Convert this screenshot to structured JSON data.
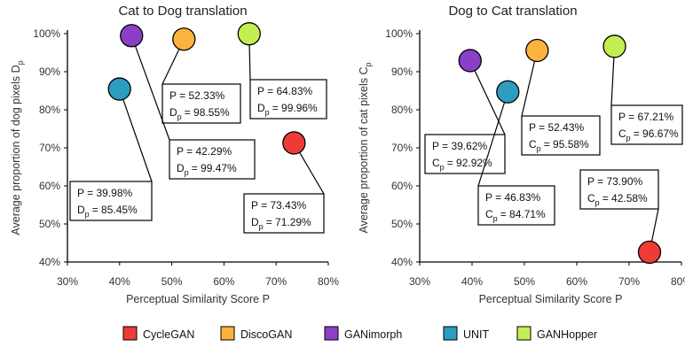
{
  "chart_data": [
    {
      "type": "scatter",
      "title": "Cat to Dog translation",
      "xlabel": "Perceptual Similarity Score P",
      "ylabel": "Average proportion of dog pixels D",
      "ylabel_sub": "p",
      "xlim": [
        30,
        80
      ],
      "ylim": [
        40,
        100
      ],
      "x_ticks": [
        "30%",
        "40%",
        "50%",
        "60%",
        "70%",
        "80%"
      ],
      "y_ticks": [
        "40%",
        "50%",
        "60%",
        "70%",
        "80%",
        "90%",
        "100%"
      ],
      "grid": false,
      "points": [
        {
          "series": "CycleGAN",
          "x": 73.43,
          "y": 71.29,
          "label_p": "P = 73.43%",
          "label_d_main": "D",
          "label_d_sub": "p",
          "label_d_rest": "= 71.29%"
        },
        {
          "series": "DiscoGAN",
          "x": 52.33,
          "y": 98.55,
          "label_p": "P = 52.33%",
          "label_d_main": "D",
          "label_d_sub": "p",
          "label_d_rest": "= 98.55%"
        },
        {
          "series": "GANimorph",
          "x": 42.29,
          "y": 99.47,
          "label_p": "P = 42.29%",
          "label_d_main": "D",
          "label_d_sub": "p",
          "label_d_rest": "=  99.47%"
        },
        {
          "series": "UNIT",
          "x": 39.98,
          "y": 85.45,
          "label_p": "P = 39.98%",
          "label_d_main": "D",
          "label_d_sub": "p",
          "label_d_rest": "= 85.45%"
        },
        {
          "series": "GANHopper",
          "x": 64.83,
          "y": 99.96,
          "label_p": "P = 64.83%",
          "label_d_main": "D",
          "label_d_sub": "p",
          "label_d_rest": "= 99.96%"
        }
      ]
    },
    {
      "type": "scatter",
      "title": "Dog to Cat translation",
      "xlabel": "Perceptual Similarity Score P",
      "ylabel": "Average proportion of cat pixels C",
      "ylabel_sub": "p",
      "xlim": [
        30,
        80
      ],
      "ylim": [
        40,
        100
      ],
      "x_ticks": [
        "30%",
        "40%",
        "50%",
        "60%",
        "70%",
        "80%"
      ],
      "y_ticks": [
        "40%",
        "50%",
        "60%",
        "70%",
        "80%",
        "90%",
        "100%"
      ],
      "grid": false,
      "points": [
        {
          "series": "CycleGAN",
          "x": 73.9,
          "y": 42.58,
          "label_p": "P = 73.90%",
          "label_d_main": "C",
          "label_d_sub": "p",
          "label_d_rest": "= 42.58%"
        },
        {
          "series": "DiscoGAN",
          "x": 52.43,
          "y": 95.58,
          "label_p": "P = 52.43%",
          "label_d_main": "C",
          "label_d_sub": "p",
          "label_d_rest": "= 95.58%"
        },
        {
          "series": "GANimorph",
          "x": 39.62,
          "y": 92.92,
          "label_p": "P = 39.62%",
          "label_d_main": "C",
          "label_d_sub": "p",
          "label_d_rest": "= 92.92%"
        },
        {
          "series": "UNIT",
          "x": 46.83,
          "y": 84.71,
          "label_p": "P = 46.83%",
          "label_d_main": "C",
          "label_d_sub": "p",
          "label_d_rest": "= 84.71%"
        },
        {
          "series": "GANHopper",
          "x": 67.21,
          "y": 96.67,
          "label_p": "P = 67.21%",
          "label_d_main": "C",
          "label_d_sub": "p",
          "label_d_rest": "=  96.67%"
        }
      ]
    }
  ],
  "legend": {
    "placement": "bottom",
    "items": [
      {
        "name": "CycleGAN",
        "color": "#ef3b36"
      },
      {
        "name": "DiscoGAN",
        "color": "#fbb33d"
      },
      {
        "name": "GANimorph",
        "color": "#8b3fc9"
      },
      {
        "name": "UNIT",
        "color": "#2c9dbf"
      },
      {
        "name": "GANHopper",
        "color": "#c3ee51"
      }
    ]
  }
}
